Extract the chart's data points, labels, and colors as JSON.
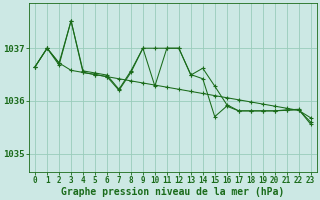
{
  "background_color": "#cce8e4",
  "grid_color": "#99ccbb",
  "line_color": "#1a6b1a",
  "xlabel": "Graphe pression niveau de la mer (hPa)",
  "xlabel_fontsize": 7,
  "tick_fontsize": 5.5,
  "xlim": [
    -0.5,
    23.5
  ],
  "ylim": [
    1034.65,
    1037.85
  ],
  "yticks": [
    1035,
    1036,
    1037
  ],
  "xticks": [
    0,
    1,
    2,
    3,
    4,
    5,
    6,
    7,
    8,
    9,
    10,
    11,
    12,
    13,
    14,
    15,
    16,
    17,
    18,
    19,
    20,
    21,
    22,
    23
  ],
  "series1_y": [
    1036.65,
    1037.0,
    1036.72,
    1036.58,
    1036.54,
    1036.5,
    1036.46,
    1036.42,
    1036.38,
    1036.34,
    1036.3,
    1036.26,
    1036.22,
    1036.18,
    1036.14,
    1036.1,
    1036.06,
    1036.02,
    1035.98,
    1035.94,
    1035.9,
    1035.86,
    1035.82,
    1035.68
  ],
  "series2_y": [
    1036.65,
    1037.0,
    1036.72,
    1037.52,
    1036.57,
    1036.53,
    1036.49,
    1036.22,
    1036.57,
    1037.0,
    1037.0,
    1037.0,
    1037.0,
    1036.49,
    1036.62,
    1036.28,
    1035.93,
    1035.81,
    1035.81,
    1035.81,
    1035.81,
    1035.82,
    1035.83,
    1035.6
  ],
  "series3_y": [
    1036.65,
    1037.0,
    1036.68,
    1037.52,
    1036.54,
    1036.5,
    1036.46,
    1036.2,
    1036.54,
    1037.0,
    1036.28,
    1037.0,
    1037.0,
    1036.5,
    1036.42,
    1035.7,
    1035.9,
    1035.81,
    1035.81,
    1035.81,
    1035.81,
    1035.83,
    1035.84,
    1035.56
  ]
}
